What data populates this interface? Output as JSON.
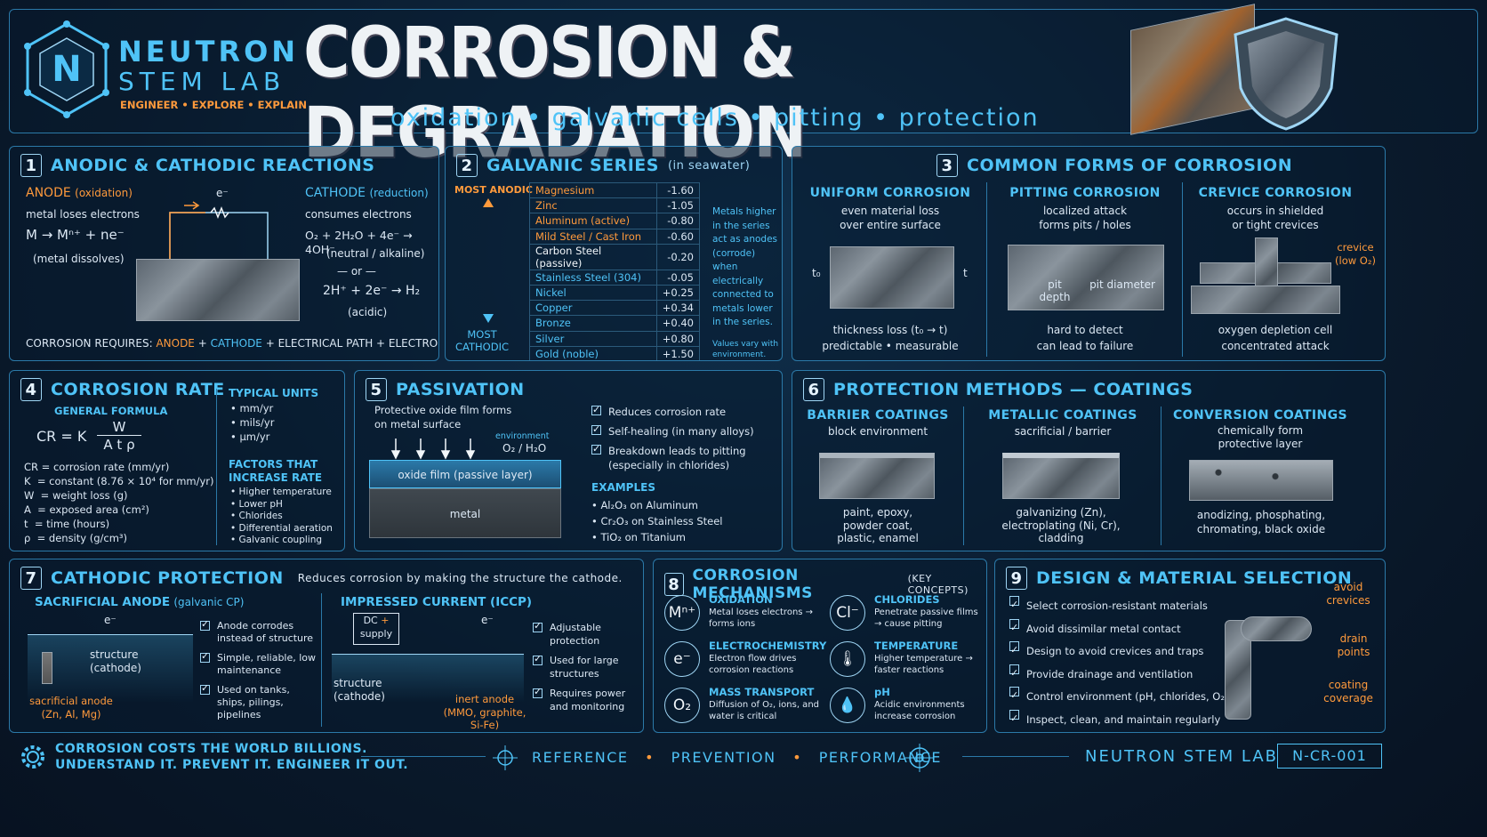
{
  "header": {
    "brand_line1": "NEUTRON",
    "brand_line2": "STEM LAB",
    "brand_tagline": "ENGINEER • EXPLORE • EXPLAIN",
    "logo_letter": "N",
    "title": "CORROSION & DEGRADATION",
    "subtitle": "oxidation • galvanic cells • pitting • protection"
  },
  "p1": {
    "num": "1",
    "title": "ANODIC & CATHODIC REACTIONS",
    "anode_label": "ANODE",
    "anode_sub": "(oxidation)",
    "anode_desc": "metal loses electrons",
    "anode_eq": "M → Mⁿ⁺ + ne⁻",
    "anode_note": "(metal dissolves)",
    "electron": "e⁻",
    "cathode_label": "CATHODE",
    "cathode_sub": "(reduction)",
    "cathode_desc": "consumes electrons",
    "cathode_eq1": "O₂ + 2H₂O + 4e⁻ → 4OH⁻",
    "cathode_note1": "(neutral / alkaline)",
    "or": "— or —",
    "cathode_eq2": "2H⁺ + 2e⁻ → H₂",
    "cathode_note2": "(acidic)",
    "req_prefix": "CORROSION REQUIRES:",
    "req_anode": "ANODE",
    "req_plus": "+",
    "req_cathode": "CATHODE",
    "req_rest": "+ ELECTRICAL PATH + ELECTROLYTE"
  },
  "p2": {
    "num": "2",
    "title": "GALVANIC SERIES",
    "title_sub": "(in seawater)",
    "most_anodic": "MOST ANODIC",
    "most_cathodic": "MOST CATHODIC",
    "rows": [
      {
        "name": "Magnesium",
        "v": "-1.60"
      },
      {
        "name": "Zinc",
        "v": "-1.05"
      },
      {
        "name": "Aluminum (active)",
        "v": "-0.80"
      },
      {
        "name": "Mild Steel / Cast Iron",
        "v": "-0.60"
      },
      {
        "name": "Carbon Steel (passive)",
        "v": "-0.20"
      },
      {
        "name": "Stainless Steel (304)",
        "v": "-0.05"
      },
      {
        "name": "Nickel",
        "v": "+0.25"
      },
      {
        "name": "Copper",
        "v": "+0.34"
      },
      {
        "name": "Bronze",
        "v": "+0.40"
      },
      {
        "name": "Silver",
        "v": "+0.80"
      },
      {
        "name": "Gold (noble)",
        "v": "+1.50"
      }
    ],
    "note": "Metals higher in the series act as anodes (corrode) when electrically connected to metals lower in the series.",
    "note2": "Values vary with environment."
  },
  "p3": {
    "num": "3",
    "title": "COMMON FORMS OF CORROSION",
    "uniform": {
      "title": "UNIFORM CORROSION",
      "desc1": "even material loss",
      "desc2": "over entire surface",
      "t0": "t₀",
      "t": "t",
      "foot1": "thickness loss (t₀ → t)",
      "foot2": "predictable • measurable"
    },
    "pitting": {
      "title": "PITTING CORROSION",
      "desc1": "localized attack",
      "desc2": "forms pits / holes",
      "pit_depth": "pit depth",
      "pit_diameter": "pit diameter",
      "foot1": "hard to detect",
      "foot2": "can lead to failure"
    },
    "crevice": {
      "title": "CREVICE CORROSION",
      "desc1": "occurs in shielded",
      "desc2": "or tight crevices",
      "callout": "crevice (low O₂)",
      "foot1": "oxygen depletion cell",
      "foot2": "concentrated attack"
    }
  },
  "p4": {
    "num": "4",
    "title": "CORROSION RATE",
    "gen": "GENERAL FORMULA",
    "formula_lhs": "CR = K",
    "numer": "W",
    "denom": "A t ρ",
    "defs": [
      "CR = corrosion rate (mm/yr)",
      "K  = constant (8.76 × 10⁴ for mm/yr)",
      "W  = weight loss (g)",
      "A  = exposed area (cm²)",
      "t  = time (hours)",
      "ρ  = density (g/cm³)"
    ],
    "units_title": "TYPICAL UNITS",
    "units": [
      "• mm/yr",
      "• mils/yr",
      "• μm/yr"
    ],
    "factors_title": "FACTORS THAT INCREASE RATE",
    "factors": [
      "• Higher temperature",
      "• Lower pH",
      "• Chlorides",
      "• Differential aeration",
      "• Galvanic coupling"
    ]
  },
  "p5": {
    "num": "5",
    "title": "PASSIVATION",
    "desc": "Protective oxide film forms on metal surface",
    "env": "environment",
    "env_val": "O₂ / H₂O",
    "film": "oxide film (passive layer)",
    "metal": "metal",
    "checks": [
      "Reduces corrosion rate",
      "Self-healing (in many alloys)",
      "Breakdown leads to pitting (especially in chlorides)"
    ],
    "ex_title": "EXAMPLES",
    "examples": [
      "• Al₂O₃  on Aluminum",
      "• Cr₂O₃  on Stainless Steel",
      "• TiO₂  on Titanium"
    ]
  },
  "p6": {
    "num": "6",
    "title": "PROTECTION METHODS — COATINGS",
    "cols": [
      {
        "title": "BARRIER COATINGS",
        "desc": "block environment",
        "foot": "paint, epoxy, powder coat, plastic, enamel"
      },
      {
        "title": "METALLIC COATINGS",
        "desc": "sacrificial / barrier",
        "foot": "galvanizing (Zn), electroplating (Ni, Cr), cladding"
      },
      {
        "title": "CONVERSION COATINGS",
        "desc": "chemically form protective layer",
        "foot": "anodizing, phosphating, chromating, black oxide"
      }
    ]
  },
  "p7": {
    "num": "7",
    "title": "CATHODIC PROTECTION",
    "title_desc": "Reduces corrosion by making the structure the cathode.",
    "sac_title": "SACRIFICIAL ANODE",
    "sac_sub": "(galvanic CP)",
    "e": "e⁻",
    "structure": "structure (cathode)",
    "sac_anode": "sacrificial anode (Zn, Al, Mg)",
    "sac_checks": [
      "Anode corrodes instead of structure",
      "Simple, reliable, low maintenance",
      "Used on tanks, ships, pilings, pipelines"
    ],
    "icc_title": "IMPRESSED CURRENT (ICCP)",
    "dc": "DC",
    "supply": "supply",
    "plus": "+",
    "minus": "−",
    "inert": "inert anode (MMO, graphite, Si-Fe)",
    "icc_checks": [
      "Adjustable protection",
      "Used for large structures",
      "Requires power and monitoring"
    ]
  },
  "p8": {
    "num": "8",
    "title": "CORROSION MECHANISMS",
    "title_sub": "(KEY CONCEPTS)",
    "items": [
      {
        "icon": "Mⁿ⁺",
        "t": "OXIDATION",
        "d": "Metal loses electrons → forms ions"
      },
      {
        "icon": "Cl⁻",
        "t": "CHLORIDES",
        "d": "Penetrate passive films → cause pitting"
      },
      {
        "icon": "e⁻",
        "t": "ELECTROCHEMISTRY",
        "d": "Electron flow drives corrosion reactions"
      },
      {
        "icon": "🌡",
        "t": "TEMPERATURE",
        "d": "Higher temperature → faster reactions"
      },
      {
        "icon": "O₂",
        "t": "MASS TRANSPORT",
        "d": "Diffusion of O₂, ions, and water is critical"
      },
      {
        "icon": "💧",
        "t": "pH",
        "d": "Acidic environments increase corrosion"
      }
    ]
  },
  "p9": {
    "num": "9",
    "title": "DESIGN & MATERIAL SELECTION",
    "checks": [
      "Select corrosion-resistant materials",
      "Avoid dissimilar metal contact",
      "Design to avoid crevices and traps",
      "Provide drainage and ventilation",
      "Control environment (pH, chlorides, O₂)",
      "Inspect, clean, and maintain regularly"
    ],
    "callouts": [
      "avoid crevices",
      "drain points",
      "coating coverage"
    ]
  },
  "footer": {
    "line1": "CORROSION COSTS THE WORLD BILLIONS.",
    "line2": "UNDERSTAND IT. PREVENT IT. ENGINEER IT OUT.",
    "ref": "REFERENCE",
    "prev": "PREVENTION",
    "perf": "PERFORMANCE",
    "dot": "•",
    "brand": "NEUTRON STEM LAB",
    "code": "N-CR-001"
  }
}
